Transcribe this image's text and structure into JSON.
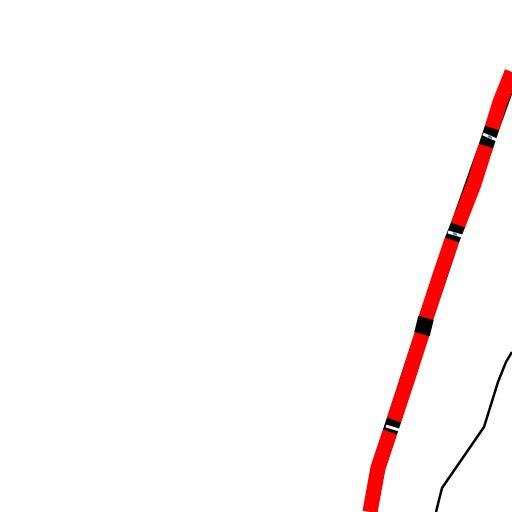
{
  "map": {
    "background": "#ffffff",
    "features": [
      {
        "name": "main-route-line",
        "kind": "route",
        "color": "#ff0000",
        "casing_color": "#000000"
      },
      {
        "name": "secondary-boundary-line",
        "kind": "boundary",
        "color": "#000000"
      }
    ],
    "route_markers": [
      {
        "name": "route-gap-marker-1",
        "color": "#000000",
        "accent": "#3a7bd5"
      },
      {
        "name": "route-gap-marker-2",
        "color": "#000000",
        "accent": "#3a7bd5"
      },
      {
        "name": "route-black-segment",
        "color": "#000000"
      },
      {
        "name": "route-gap-marker-3",
        "color": "#000000"
      }
    ]
  }
}
